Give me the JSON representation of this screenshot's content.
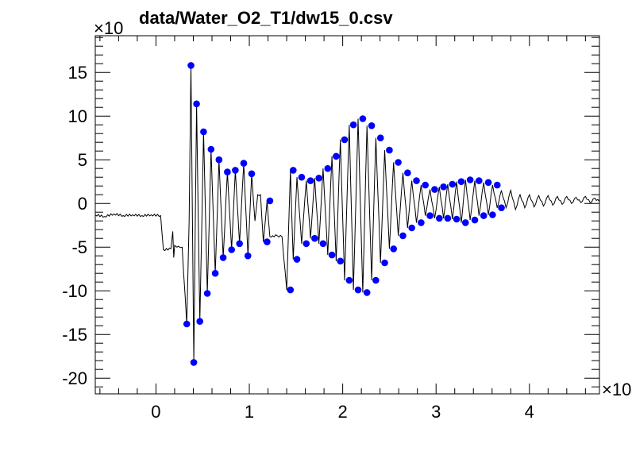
{
  "chart_data": {
    "type": "scatter",
    "title": "data/Water_O2_T1/dw15_0.csv",
    "x_multiplier_label": "×10",
    "y_multiplier_label": "×10",
    "xlim": [
      -0.65,
      4.75
    ],
    "ylim": [
      -21.8,
      19.2
    ],
    "x_ticks": [
      0,
      1,
      2,
      3,
      4
    ],
    "x_tick_labels": [
      "0",
      "1",
      "2",
      "3",
      "4"
    ],
    "y_ticks": [
      -20,
      -15,
      -10,
      -5,
      0,
      5,
      10,
      15
    ],
    "y_tick_labels": [
      "-20",
      "-15",
      "-10",
      "-5",
      "0",
      "5",
      "10",
      "15"
    ],
    "grid": false,
    "legend": "none",
    "colors": {
      "points": "#0000ff",
      "line": "#000000"
    },
    "series": [
      {
        "style": "line",
        "x": [
          -0.65,
          -0.55,
          -0.45,
          -0.35,
          -0.25,
          -0.15,
          -0.05,
          0.05,
          0.08,
          0.16,
          0.18,
          0.19,
          0.2,
          0.21,
          0.24,
          0.28,
          0.33,
          0.355,
          0.375,
          0.405,
          0.435,
          0.47,
          0.51,
          0.55,
          0.59,
          0.635,
          0.675,
          0.72,
          0.765,
          0.81,
          0.85,
          0.895,
          0.94,
          0.985,
          1.025,
          1.06,
          1.09,
          1.12,
          1.15,
          1.19,
          1.22,
          1.25,
          1.3,
          1.35,
          1.4,
          1.44,
          1.47,
          1.51,
          1.56,
          1.61,
          1.655,
          1.7,
          1.745,
          1.79,
          1.84,
          1.885,
          1.93,
          1.975,
          2.02,
          2.07,
          2.115,
          2.165,
          2.215,
          2.26,
          2.31,
          2.355,
          2.405,
          2.45,
          2.5,
          2.545,
          2.595,
          2.645,
          2.695,
          2.74,
          2.79,
          2.84,
          2.885,
          2.935,
          2.985,
          3.035,
          3.08,
          3.125,
          3.175,
          3.22,
          3.27,
          3.315,
          3.365,
          3.415,
          3.46,
          3.51,
          3.56,
          3.605,
          3.655,
          3.7,
          3.75,
          3.8,
          3.85,
          3.9,
          3.95,
          4.0,
          4.05,
          4.1,
          4.15,
          4.2,
          4.25,
          4.3,
          4.35,
          4.4,
          4.45,
          4.5,
          4.55,
          4.6,
          4.65,
          4.7,
          4.75
        ],
        "y": [
          -1.3,
          -1.5,
          -1.2,
          -1.4,
          -1.3,
          -1.4,
          -1.3,
          -1.4,
          -5.3,
          -5.2,
          -3.2,
          -6.2,
          -4.8,
          -4.9,
          -4.9,
          -5.0,
          -13.8,
          -2.0,
          15.8,
          -18.2,
          11.4,
          -13.5,
          8.2,
          -10.3,
          6.2,
          -8.0,
          5.0,
          -6.2,
          3.6,
          -5.3,
          3.8,
          -4.6,
          4.6,
          -6.0,
          3.4,
          -2.0,
          1.0,
          1.0,
          -4.4,
          0.3,
          -3.8,
          -3.7,
          -3.7,
          -3.8,
          -9.9,
          3.8,
          -6.4,
          3.0,
          -4.6,
          2.6,
          -4.0,
          2.9,
          -4.6,
          4.0,
          -5.9,
          5.4,
          -6.6,
          7.3,
          -8.8,
          9.0,
          -9.9,
          9.7,
          -10.2,
          8.9,
          -8.8,
          7.5,
          -6.8,
          6.1,
          -5.2,
          4.7,
          -3.7,
          3.5,
          -2.8,
          2.6,
          -2.2,
          2.1,
          -1.4,
          1.6,
          -1.7,
          1.9,
          -1.7,
          2.2,
          -1.8,
          2.5,
          -2.2,
          2.7,
          -1.9,
          2.6,
          -1.4,
          2.4,
          -1.3,
          2.1,
          -0.5,
          1.5,
          -0.5,
          1.5,
          -0.7,
          1.0,
          -0.5,
          1.0,
          -0.4,
          0.9,
          -0.3,
          0.9,
          -0.2,
          0.8,
          -0.1,
          0.8,
          0.0,
          0.7,
          0.1,
          0.8,
          0.1,
          0.6,
          0.2
        ]
      },
      {
        "style": "points",
        "x": [
          0.33,
          0.375,
          0.405,
          0.435,
          0.47,
          0.51,
          0.55,
          0.59,
          0.635,
          0.675,
          0.72,
          0.765,
          0.81,
          0.85,
          0.895,
          0.94,
          0.985,
          1.025,
          1.19,
          1.22,
          1.44,
          1.47,
          1.51,
          1.56,
          1.61,
          1.655,
          1.7,
          1.745,
          1.79,
          1.84,
          1.885,
          1.93,
          1.975,
          2.02,
          2.07,
          2.115,
          2.165,
          2.215,
          2.26,
          2.31,
          2.355,
          2.405,
          2.45,
          2.5,
          2.545,
          2.595,
          2.645,
          2.695,
          2.74,
          2.79,
          2.84,
          2.885,
          2.935,
          2.985,
          3.035,
          3.08,
          3.125,
          3.175,
          3.22,
          3.27,
          3.315,
          3.365,
          3.415,
          3.46,
          3.51,
          3.56,
          3.605,
          3.655,
          3.7
        ],
        "y": [
          -13.8,
          15.8,
          -18.2,
          11.4,
          -13.5,
          8.2,
          -10.3,
          6.2,
          -8.0,
          5.0,
          -6.2,
          3.6,
          -5.3,
          3.8,
          -4.6,
          4.6,
          -6.0,
          3.4,
          -4.4,
          0.3,
          -9.9,
          3.8,
          -6.4,
          3.0,
          -4.6,
          2.6,
          -4.0,
          2.9,
          -4.6,
          4.0,
          -5.9,
          5.4,
          -6.6,
          7.3,
          -8.8,
          9.0,
          -9.9,
          9.7,
          -10.2,
          8.9,
          -8.8,
          7.5,
          -6.8,
          6.1,
          -5.2,
          4.7,
          -3.7,
          3.5,
          -2.8,
          2.6,
          -2.2,
          2.1,
          -1.4,
          1.6,
          -1.7,
          1.9,
          -1.7,
          2.2,
          -1.8,
          2.5,
          -2.2,
          2.7,
          -1.9,
          2.6,
          -1.4,
          2.4,
          -1.3,
          2.1,
          -0.5
        ]
      }
    ]
  }
}
